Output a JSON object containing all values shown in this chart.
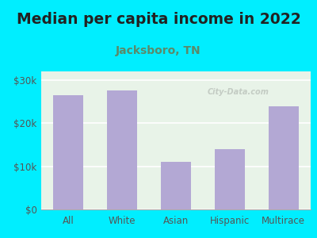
{
  "title": "Median per capita income in 2022",
  "subtitle": "Jacksboro, TN",
  "categories": [
    "All",
    "White",
    "Asian",
    "Hispanic",
    "Multirace"
  ],
  "values": [
    26500,
    27500,
    11000,
    14000,
    24000
  ],
  "bar_color": "#b3a8d4",
  "background_outer": "#00eeff",
  "background_inner_top": "#e8f3e8",
  "background_inner_bottom": "#f5faf0",
  "title_fontsize": 13.5,
  "subtitle_fontsize": 10,
  "title_color": "#222222",
  "subtitle_color": "#5a8a6a",
  "tick_label_color": "#555555",
  "ylabel_ticks": [
    0,
    10000,
    20000,
    30000
  ],
  "ylabel_labels": [
    "$0",
    "$10k",
    "$20k",
    "$30k"
  ],
  "ylim": [
    0,
    32000
  ],
  "watermark": "City-Data.com"
}
